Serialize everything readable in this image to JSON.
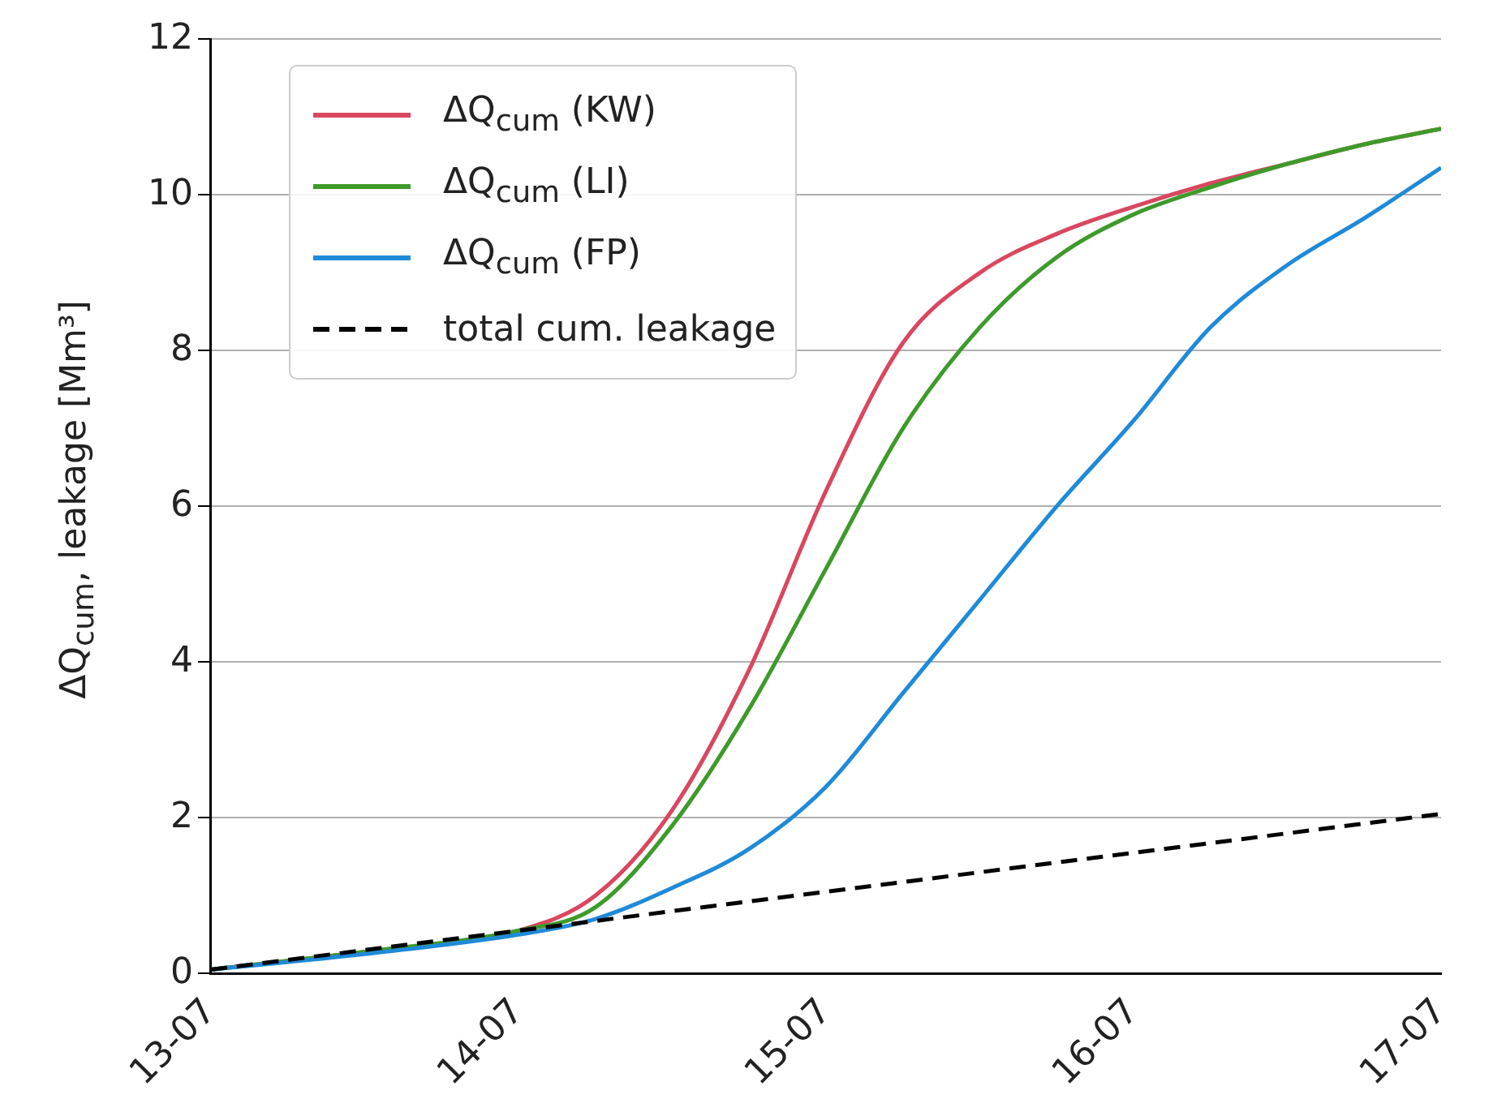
{
  "chart_data": {
    "type": "line",
    "ylabel": "ΔQ$_{cum}$, leakage [Mm³]",
    "xlim": [
      "--07-13",
      "--07-17"
    ],
    "xticks": [
      {
        "value": "--07-13",
        "label": "13-07"
      },
      {
        "value": "--07-14",
        "label": "14-07"
      },
      {
        "value": "--07-15",
        "label": "15-07"
      },
      {
        "value": "--07-16",
        "label": "16-07"
      },
      {
        "value": "--07-17",
        "label": "17-07"
      }
    ],
    "ylim": [
      0,
      12
    ],
    "yticks": [
      0,
      2,
      4,
      6,
      8,
      10,
      12
    ],
    "grid": "y",
    "legend": "top left",
    "marker": "none",
    "x": [
      "--07-13",
      "--07-13T12:00",
      "--07-14",
      "--07-14T06:00",
      "--07-14T12:00",
      "--07-14T18:00",
      "--07-15",
      "--07-15T06:00",
      "--07-15T12:00",
      "--07-15T18:00",
      "--07-16",
      "--07-16T06:00",
      "--07-16T12:00",
      "--07-16T18:00",
      "--07-17"
    ],
    "series": [
      {
        "name": "ΔQ$_{cum}$ (KW)",
        "color": "#d9475f",
        "values": [
          0.05,
          0.28,
          0.55,
          1.0,
          2.1,
          3.9,
          6.2,
          8.1,
          9.0,
          9.5,
          9.85,
          10.15,
          10.4,
          10.65,
          10.85
        ]
      },
      {
        "name": "ΔQ$_{cum}$ (LI)",
        "color": "#3e9a2b",
        "values": [
          0.05,
          0.28,
          0.55,
          0.85,
          1.9,
          3.4,
          5.2,
          7.0,
          8.3,
          9.2,
          9.75,
          10.1,
          10.4,
          10.65,
          10.85
        ]
      },
      {
        "name": "ΔQ$_{cum}$ (FP)",
        "color": "#1f8ad8",
        "values": [
          0.05,
          0.25,
          0.5,
          0.7,
          1.1,
          1.6,
          2.4,
          3.6,
          4.8,
          6.0,
          7.1,
          8.3,
          9.1,
          9.7,
          10.35
        ]
      },
      {
        "name": "total cum. leakage",
        "color": "#000000",
        "line_style": "dashed",
        "x": [
          "--07-13",
          "--07-17"
        ],
        "values": [
          0.05,
          2.05
        ]
      }
    ]
  }
}
